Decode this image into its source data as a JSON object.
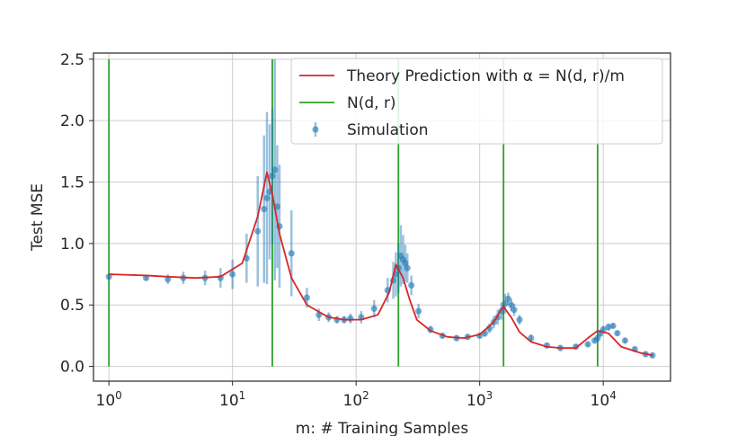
{
  "chart_data": {
    "type": "line",
    "title": "",
    "xlabel": "m: # Training Samples",
    "ylabel": "Test MSE",
    "xscale": "log",
    "xlim": [
      0.75,
      35000
    ],
    "ylim": [
      -0.12,
      2.55
    ],
    "grid": true,
    "legend_position": "top-right",
    "x_ticks": [
      {
        "value": 1,
        "base": "10",
        "exp": "0"
      },
      {
        "value": 10,
        "base": "10",
        "exp": "1"
      },
      {
        "value": 100,
        "base": "10",
        "exp": "2"
      },
      {
        "value": 1000,
        "base": "10",
        "exp": "3"
      },
      {
        "value": 10000,
        "base": "10",
        "exp": "4"
      }
    ],
    "y_ticks": [
      {
        "value": 0.0,
        "label": "0.0"
      },
      {
        "value": 0.5,
        "label": "0.5"
      },
      {
        "value": 1.0,
        "label": "1.0"
      },
      {
        "value": 1.5,
        "label": "1.5"
      },
      {
        "value": 2.0,
        "label": "2.0"
      },
      {
        "value": 2.5,
        "label": "2.5"
      }
    ],
    "legend": [
      {
        "label": "Theory Prediction with α = N(d, r)/m",
        "color": "#d62728",
        "kind": "line"
      },
      {
        "label": "N(d, r)",
        "color": "#2ca02c",
        "kind": "line"
      },
      {
        "label": "Simulation",
        "color": "#1f77b4",
        "kind": "point"
      }
    ],
    "theory": {
      "name": "Theory Prediction with α = N(d, r)/m",
      "color": "#d62728",
      "x": [
        1,
        2,
        3,
        5,
        8,
        12,
        16,
        19,
        21,
        24,
        30,
        40,
        60,
        80,
        110,
        150,
        185,
        210,
        240,
        270,
        310,
        400,
        550,
        750,
        1000,
        1300,
        1550,
        1800,
        2100,
        2600,
        3500,
        4500,
        6000,
        7500,
        9000,
        11000,
        14000,
        20000,
        25000
      ],
      "y": [
        0.75,
        0.74,
        0.73,
        0.72,
        0.73,
        0.84,
        1.22,
        1.58,
        1.4,
        1.08,
        0.72,
        0.5,
        0.4,
        0.38,
        0.38,
        0.42,
        0.6,
        0.83,
        0.72,
        0.55,
        0.38,
        0.29,
        0.24,
        0.23,
        0.26,
        0.36,
        0.49,
        0.4,
        0.28,
        0.2,
        0.16,
        0.15,
        0.15,
        0.23,
        0.29,
        0.27,
        0.16,
        0.11,
        0.09
      ]
    },
    "n_lines": {
      "name": "N(d, r)",
      "color": "#2ca02c",
      "x": [
        1,
        21,
        220,
        1560,
        9000
      ],
      "y_top": [
        2.5,
        2.5,
        2.5,
        2.5,
        2.5
      ]
    },
    "simulation": {
      "name": "Simulation",
      "color": "#1f77b4",
      "x": [
        1,
        2,
        3,
        4,
        6,
        8,
        10,
        13,
        16,
        18,
        19,
        20,
        21,
        22,
        23,
        24,
        30,
        40,
        50,
        60,
        70,
        80,
        90,
        110,
        140,
        180,
        200,
        210,
        220,
        230,
        240,
        250,
        260,
        280,
        320,
        400,
        500,
        650,
        800,
        1000,
        1100,
        1200,
        1300,
        1400,
        1500,
        1600,
        1700,
        1800,
        1900,
        2100,
        2600,
        3500,
        4500,
        6000,
        7500,
        8500,
        9000,
        9500,
        10000,
        11000,
        12000,
        13000,
        15000,
        18000,
        22000,
        25000
      ],
      "y": [
        0.73,
        0.72,
        0.71,
        0.72,
        0.72,
        0.72,
        0.75,
        0.88,
        1.1,
        1.28,
        1.37,
        1.42,
        1.55,
        1.6,
        1.3,
        1.14,
        0.92,
        0.56,
        0.42,
        0.4,
        0.38,
        0.38,
        0.39,
        0.4,
        0.47,
        0.62,
        0.7,
        0.75,
        0.8,
        0.9,
        0.87,
        0.84,
        0.8,
        0.66,
        0.45,
        0.3,
        0.25,
        0.23,
        0.24,
        0.25,
        0.27,
        0.31,
        0.36,
        0.4,
        0.45,
        0.51,
        0.55,
        0.5,
        0.46,
        0.38,
        0.23,
        0.17,
        0.15,
        0.16,
        0.18,
        0.21,
        0.23,
        0.27,
        0.3,
        0.32,
        0.33,
        0.27,
        0.21,
        0.14,
        0.1,
        0.09
      ],
      "err": [
        0.02,
        0.02,
        0.04,
        0.05,
        0.06,
        0.08,
        0.12,
        0.2,
        0.45,
        0.6,
        0.7,
        0.55,
        0.55,
        0.9,
        0.5,
        0.5,
        0.35,
        0.08,
        0.05,
        0.04,
        0.03,
        0.03,
        0.04,
        0.05,
        0.07,
        0.1,
        0.15,
        0.18,
        0.2,
        0.25,
        0.2,
        0.15,
        0.12,
        0.08,
        0.06,
        0.03,
        0.02,
        0.02,
        0.02,
        0.02,
        0.03,
        0.04,
        0.05,
        0.06,
        0.07,
        0.08,
        0.05,
        0.05,
        0.05,
        0.04,
        0.03,
        0.02,
        0.02,
        0.02,
        0.02,
        0.02,
        0.03,
        0.03,
        0.03,
        0.03,
        0.02,
        0.02,
        0.02,
        0.02,
        0.02,
        0.02
      ]
    }
  }
}
